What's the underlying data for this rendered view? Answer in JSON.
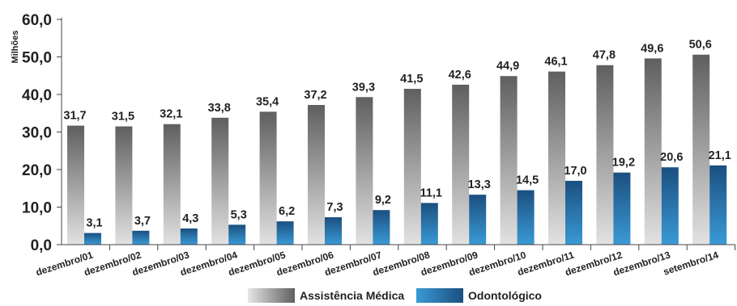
{
  "chart_data": {
    "type": "bar",
    "ylabel": "Milhões",
    "ylim": [
      0,
      60
    ],
    "yticks": [
      "0,0",
      "10,0",
      "20,0",
      "30,0",
      "40,0",
      "50,0",
      "60,0"
    ],
    "grid": false,
    "legend_position": "bottom",
    "categories": [
      "dezembro/01",
      "dezembro/02",
      "dezembro/03",
      "dezembro/04",
      "dezembro/05",
      "dezembro/06",
      "dezembro/07",
      "dezembro/08",
      "dezembro/09",
      "dezembro/10",
      "dezembro/11",
      "dezembro/12",
      "dezembro/13",
      "setembro/14"
    ],
    "series": [
      {
        "name": "Assistência Médica",
        "color": "#6e6e6e",
        "values": [
          31.7,
          31.5,
          32.1,
          33.8,
          35.4,
          37.2,
          39.3,
          41.5,
          42.6,
          44.9,
          46.1,
          47.8,
          49.6,
          50.6
        ],
        "labels": [
          "31,7",
          "31,5",
          "32,1",
          "33,8",
          "35,4",
          "37,2",
          "39,3",
          "41,5",
          "42,6",
          "44,9",
          "46,1",
          "47,8",
          "49,6",
          "50,6"
        ]
      },
      {
        "name": "Odontológico",
        "color": "#1f5a8e",
        "values": [
          3.1,
          3.7,
          4.3,
          5.3,
          6.2,
          7.3,
          9.2,
          11.1,
          13.3,
          14.5,
          17.0,
          19.2,
          20.6,
          21.1
        ],
        "labels": [
          "3,1",
          "3,7",
          "4,3",
          "5,3",
          "6,2",
          "7,3",
          "9,2",
          "11,1",
          "13,3",
          "14,5",
          "17,0",
          "19,2",
          "20,6",
          "21,1"
        ]
      }
    ]
  }
}
